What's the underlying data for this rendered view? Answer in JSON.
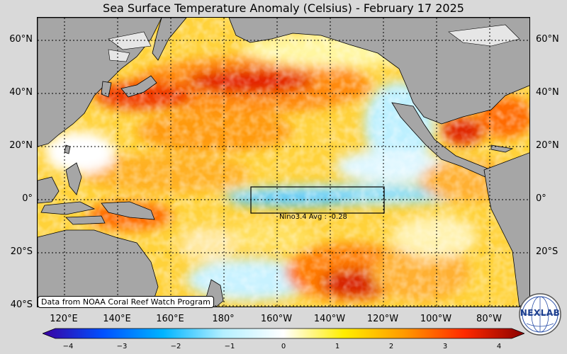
{
  "title": "Sea Surface Temperature Anomaly (Celsius) - February 17 2025",
  "lat_labels": [
    "60°N",
    "40°N",
    "20°N",
    "0°",
    "20°S",
    "40°S"
  ],
  "lon_labels": [
    "120°E",
    "140°E",
    "160°E",
    "180°",
    "160°W",
    "140°W",
    "120°W",
    "100°W",
    "80°W"
  ],
  "nino_label": "Nino3.4 Avg : -0.28",
  "credit": "Data from NOAA Coral Reef Watch Program",
  "colorbar": {
    "ticks": [
      "−4",
      "−3",
      "−2",
      "−1",
      "0",
      "1",
      "2",
      "3",
      "4"
    ],
    "min": -4,
    "max": 4,
    "colors": [
      "#3a00a0",
      "#0050ff",
      "#00b4ff",
      "#b4f0ff",
      "#ffffff",
      "#ffee00",
      "#ff9a00",
      "#ff2a00",
      "#8a0000"
    ]
  },
  "logo": {
    "text": "NEXLAB"
  },
  "colors": {
    "land": "#a6a6a6",
    "ice": "#e6e6e6",
    "background": "#d9d9d9"
  }
}
